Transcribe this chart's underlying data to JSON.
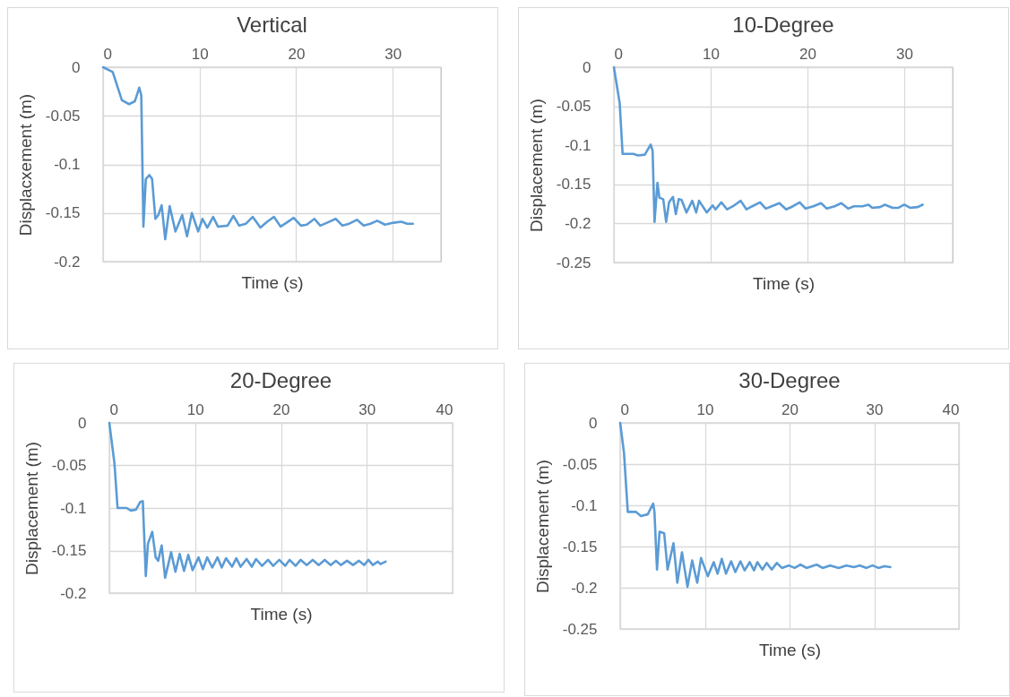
{
  "chart_data": [
    {
      "type": "line",
      "title": "Vertical",
      "xlabel": "Time (s)",
      "ylabel": "Displacxement (m)",
      "xlim": [
        0,
        35
      ],
      "xticks": [
        0,
        10,
        20,
        30
      ],
      "ylim": [
        -0.2,
        0
      ],
      "yticks": [
        0,
        -0.05,
        -0.1,
        -0.15,
        -0.2
      ],
      "grid": true,
      "x": [
        0,
        1.0,
        1.95,
        2.7,
        3.3,
        3.75,
        3.96,
        4.18,
        4.43,
        4.8,
        5.08,
        5.42,
        5.73,
        6.07,
        6.44,
        6.9,
        7.5,
        8.2,
        8.7,
        9.2,
        9.85,
        10.3,
        10.8,
        11.4,
        11.9,
        12.9,
        13.5,
        14.1,
        14.8,
        15.5,
        16.3,
        17.0,
        17.7,
        18.4,
        19.0,
        19.75,
        20.5,
        21.1,
        21.9,
        22.5,
        23.2,
        24.1,
        24.8,
        25.5,
        26.3,
        27.0,
        27.7,
        28.4,
        29.2,
        30.1,
        30.9,
        31.5,
        32.1
      ],
      "series": [
        {
          "color": "#5b9bd5",
          "values": [
            0,
            -0.005,
            -0.034,
            -0.038,
            -0.035,
            -0.021,
            -0.029,
            -0.164,
            -0.115,
            -0.111,
            -0.115,
            -0.156,
            -0.152,
            -0.142,
            -0.177,
            -0.143,
            -0.169,
            -0.152,
            -0.174,
            -0.15,
            -0.169,
            -0.156,
            -0.165,
            -0.154,
            -0.164,
            -0.163,
            -0.153,
            -0.163,
            -0.161,
            -0.154,
            -0.165,
            -0.159,
            -0.154,
            -0.164,
            -0.16,
            -0.155,
            -0.163,
            -0.162,
            -0.156,
            -0.163,
            -0.16,
            -0.156,
            -0.163,
            -0.161,
            -0.157,
            -0.163,
            -0.161,
            -0.158,
            -0.162,
            -0.16,
            -0.159,
            -0.161,
            -0.161
          ]
        }
      ]
    },
    {
      "type": "line",
      "title": "10-Degree",
      "xlabel": "Time (s)",
      "ylabel": "Displacement (m)",
      "xlim": [
        0,
        35
      ],
      "xticks": [
        0,
        10,
        20,
        30
      ],
      "ylim": [
        -0.25,
        0
      ],
      "yticks": [
        0,
        -0.05,
        -0.1,
        -0.15,
        -0.2,
        -0.25
      ],
      "grid": true,
      "x": [
        0,
        0.6,
        0.9,
        2.0,
        2.5,
        3.2,
        3.8,
        4.0,
        4.2,
        4.5,
        4.7,
        5.1,
        5.4,
        5.7,
        6.1,
        6.4,
        6.7,
        7.0,
        7.5,
        8.1,
        8.5,
        8.8,
        9.6,
        10.2,
        10.5,
        11.1,
        11.7,
        12.3,
        13.1,
        13.7,
        14.3,
        15.1,
        15.7,
        16.3,
        17.1,
        17.8,
        18.5,
        19.2,
        19.8,
        20.6,
        21.4,
        22.0,
        22.8,
        23.5,
        24.2,
        24.8,
        25.7,
        26.3,
        26.7,
        27.5,
        28.0,
        28.8,
        29.4,
        30.0,
        30.6,
        31.4,
        31.9
      ],
      "series": [
        {
          "color": "#5b9bd5",
          "values": [
            0,
            -0.046,
            -0.111,
            -0.111,
            -0.113,
            -0.112,
            -0.099,
            -0.107,
            -0.198,
            -0.148,
            -0.167,
            -0.169,
            -0.198,
            -0.173,
            -0.166,
            -0.188,
            -0.169,
            -0.17,
            -0.186,
            -0.171,
            -0.186,
            -0.171,
            -0.186,
            -0.177,
            -0.182,
            -0.173,
            -0.182,
            -0.178,
            -0.171,
            -0.182,
            -0.178,
            -0.173,
            -0.181,
            -0.178,
            -0.174,
            -0.182,
            -0.178,
            -0.173,
            -0.181,
            -0.178,
            -0.174,
            -0.181,
            -0.178,
            -0.174,
            -0.181,
            -0.178,
            -0.178,
            -0.176,
            -0.18,
            -0.179,
            -0.176,
            -0.18,
            -0.18,
            -0.176,
            -0.18,
            -0.179,
            -0.176
          ]
        }
      ]
    },
    {
      "type": "line",
      "title": "20-Degree",
      "xlabel": "Time (s)",
      "ylabel": "Displacement (m)",
      "xlim": [
        0,
        40
      ],
      "xticks": [
        0,
        10,
        20,
        30,
        40
      ],
      "ylim": [
        -0.2,
        0
      ],
      "yticks": [
        0,
        -0.05,
        -0.1,
        -0.15,
        -0.2
      ],
      "grid": true,
      "x": [
        0,
        0.6,
        0.96,
        2.0,
        2.5,
        3.1,
        3.6,
        3.9,
        4.25,
        4.5,
        5.0,
        5.4,
        5.7,
        6.1,
        6.5,
        7.2,
        7.7,
        8.2,
        8.7,
        9.2,
        9.7,
        10.4,
        10.9,
        11.4,
        12.0,
        12.6,
        13.1,
        13.6,
        14.3,
        14.8,
        15.3,
        16.0,
        16.6,
        17.1,
        17.8,
        18.5,
        19.1,
        19.8,
        20.5,
        21.0,
        21.7,
        22.3,
        23.0,
        23.7,
        24.4,
        25.1,
        25.8,
        26.4,
        27.0,
        27.7,
        28.4,
        29.1,
        29.7,
        30.2,
        30.7,
        31.3,
        31.6,
        32.2
      ],
      "series": [
        {
          "color": "#5b9bd5",
          "values": [
            0,
            -0.048,
            -0.1,
            -0.1,
            -0.103,
            -0.102,
            -0.093,
            -0.092,
            -0.18,
            -0.142,
            -0.128,
            -0.158,
            -0.162,
            -0.144,
            -0.182,
            -0.152,
            -0.175,
            -0.154,
            -0.174,
            -0.155,
            -0.173,
            -0.158,
            -0.172,
            -0.158,
            -0.17,
            -0.158,
            -0.17,
            -0.159,
            -0.169,
            -0.159,
            -0.169,
            -0.16,
            -0.169,
            -0.16,
            -0.168,
            -0.161,
            -0.168,
            -0.161,
            -0.168,
            -0.161,
            -0.168,
            -0.161,
            -0.167,
            -0.161,
            -0.167,
            -0.161,
            -0.167,
            -0.162,
            -0.167,
            -0.162,
            -0.167,
            -0.162,
            -0.167,
            -0.161,
            -0.167,
            -0.163,
            -0.166,
            -0.163
          ]
        }
      ]
    },
    {
      "type": "line",
      "title": "30-Degree",
      "xlabel": "Time (s)",
      "ylabel": "Displacement (m)",
      "xlim": [
        0,
        40
      ],
      "xticks": [
        0,
        10,
        20,
        30,
        40
      ],
      "ylim": [
        -0.25,
        0
      ],
      "yticks": [
        0,
        -0.05,
        -0.1,
        -0.15,
        -0.2,
        -0.25
      ],
      "grid": true,
      "x": [
        0,
        0.45,
        0.9,
        1.85,
        2.45,
        3.25,
        3.9,
        4.05,
        4.35,
        4.65,
        5.2,
        5.6,
        6.3,
        6.75,
        7.3,
        7.95,
        8.5,
        9.1,
        9.55,
        10.35,
        11.05,
        11.5,
        12.0,
        12.5,
        13.1,
        13.6,
        14.2,
        14.7,
        15.3,
        15.8,
        16.2,
        16.8,
        17.3,
        17.9,
        18.5,
        19.1,
        19.9,
        20.6,
        21.3,
        22.0,
        23.2,
        23.9,
        24.8,
        25.8,
        26.7,
        27.6,
        28.3,
        29.1,
        29.8,
        30.5,
        31.2,
        31.9
      ],
      "series": [
        {
          "color": "#5b9bd5",
          "values": [
            0,
            -0.036,
            -0.108,
            -0.108,
            -0.113,
            -0.111,
            -0.098,
            -0.108,
            -0.178,
            -0.132,
            -0.134,
            -0.178,
            -0.146,
            -0.194,
            -0.157,
            -0.199,
            -0.167,
            -0.194,
            -0.164,
            -0.186,
            -0.169,
            -0.183,
            -0.165,
            -0.183,
            -0.168,
            -0.181,
            -0.168,
            -0.179,
            -0.169,
            -0.179,
            -0.169,
            -0.178,
            -0.17,
            -0.178,
            -0.17,
            -0.176,
            -0.173,
            -0.176,
            -0.172,
            -0.176,
            -0.172,
            -0.176,
            -0.173,
            -0.176,
            -0.173,
            -0.175,
            -0.173,
            -0.176,
            -0.173,
            -0.176,
            -0.174,
            -0.175
          ]
        }
      ]
    }
  ]
}
